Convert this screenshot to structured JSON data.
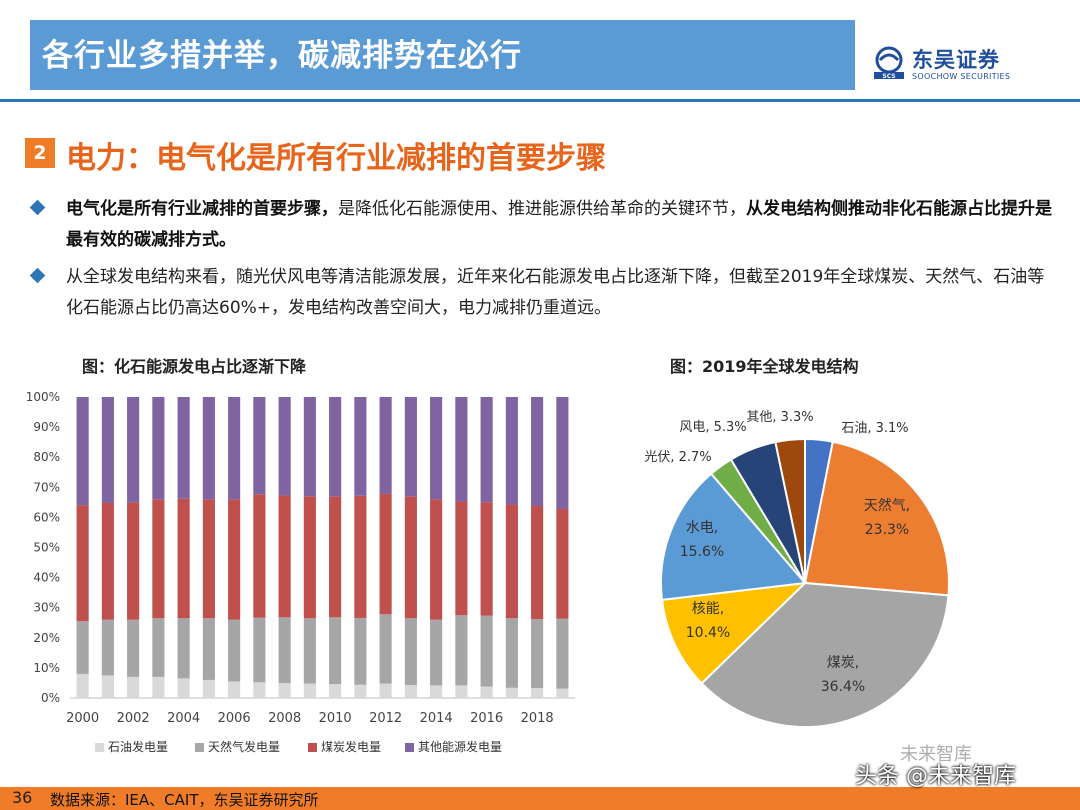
{
  "header": {
    "title": "各行业多措并举，碳减排势在必行"
  },
  "logo": {
    "cn": "东吴证券",
    "en": "SOOCHOW SECURITIES",
    "mark": "SCS"
  },
  "section": {
    "number": "2",
    "title": "电力：电气化是所有行业减排的首要步骤"
  },
  "bullets": [
    {
      "bold1": "电气化是所有行业减排的首要步骤，",
      "normal": "是降低化石能源使用、推进能源供给革命的关键环节，",
      "bold2": "从发电结构侧推动非化石能源占比提升是最有效的碳减排方式。"
    },
    {
      "text": "从全球发电结构来看，随光伏风电等清洁能源发展，近年来化石能源发电占比逐渐下降，但截至2019年全球煤炭、天然气、石油等化石能源占比仍高达60%+，发电结构改善空间大，电力减排仍重道远。"
    }
  ],
  "chart_data": [
    {
      "type": "bar",
      "stacked": true,
      "title": "图：化石能源发电占比逐渐下降",
      "categories": [
        "2000",
        "2001",
        "2002",
        "2003",
        "2004",
        "2005",
        "2006",
        "2007",
        "2008",
        "2009",
        "2010",
        "2011",
        "2012",
        "2013",
        "2014",
        "2015",
        "2016",
        "2017",
        "2018",
        "2019"
      ],
      "x_tick_labels": [
        "2000",
        "2002",
        "2004",
        "2006",
        "2008",
        "2010",
        "2012",
        "2014",
        "2016",
        "2018"
      ],
      "ylim": [
        0,
        100
      ],
      "y_ticks": [
        "0%",
        "10%",
        "20%",
        "30%",
        "40%",
        "50%",
        "60%",
        "70%",
        "80%",
        "90%",
        "100%"
      ],
      "series": [
        {
          "name": "石油发电量",
          "color": "#d9d9d9",
          "values": [
            8,
            7.5,
            7,
            7,
            6.5,
            6,
            5.5,
            5.2,
            5,
            4.8,
            4.6,
            4.4,
            4.8,
            4.3,
            4.2,
            4.2,
            3.8,
            3.4,
            3.3,
            3.1
          ]
        },
        {
          "name": "天然气发电量",
          "color": "#a6a6a6",
          "values": [
            17.5,
            18.5,
            19,
            19.5,
            20,
            20.5,
            20.5,
            21.5,
            21.8,
            21.7,
            22.2,
            22.2,
            23,
            22.2,
            21.8,
            23.3,
            23.6,
            23.1,
            22.9,
            23.3
          ]
        },
        {
          "name": "煤炭发电量",
          "color": "#c0504d",
          "values": [
            38.5,
            38.8,
            39,
            39.5,
            39.7,
            39.5,
            40,
            41,
            40.5,
            40.5,
            40.2,
            40.6,
            40,
            40.5,
            40,
            37.8,
            37.6,
            37.8,
            37.6,
            36.4
          ]
        },
        {
          "name": "其他能源发电量",
          "color": "#8064a2",
          "values": [
            36,
            35.2,
            35,
            34,
            33.8,
            34,
            34,
            32.3,
            32.7,
            33,
            33,
            32.8,
            32.2,
            33,
            34,
            34.7,
            35,
            35.7,
            36.2,
            37.2
          ]
        }
      ]
    },
    {
      "type": "pie",
      "title": "图：2019年全球发电结构",
      "slices": [
        {
          "name": "石油",
          "value": 3.1,
          "label": "石油, 3.1%",
          "color": "#4472c4"
        },
        {
          "name": "天然气",
          "value": 23.3,
          "label1": "天然气,",
          "label2": "23.3%",
          "color": "#ed7d31"
        },
        {
          "name": "煤炭",
          "value": 36.4,
          "label1": "煤炭,",
          "label2": "36.4%",
          "color": "#a5a5a5"
        },
        {
          "name": "核能",
          "value": 10.4,
          "label1": "核能,",
          "label2": "10.4%",
          "color": "#ffc000"
        },
        {
          "name": "水电",
          "value": 15.6,
          "label1": "水电,",
          "label2": "15.6%",
          "color": "#5b9bd5"
        },
        {
          "name": "光伏",
          "value": 2.7,
          "label": "光伏, 2.7%",
          "color": "#70ad47"
        },
        {
          "name": "风电",
          "value": 5.3,
          "label": "风电, 5.3%",
          "color": "#264478"
        },
        {
          "name": "其他",
          "value": 3.3,
          "label": "其他, 3.3%",
          "color": "#9e480e"
        }
      ]
    }
  ],
  "footer": {
    "page": "36",
    "source": "数据来源：IEA、CAIT，东吴证券研究所"
  },
  "watermark": {
    "text": "头条 @未来智库",
    "text2": "未来智库"
  },
  "colors": {
    "accent": "#f07c28",
    "header": "#5b9bd5",
    "rule": "#2e75b6"
  }
}
